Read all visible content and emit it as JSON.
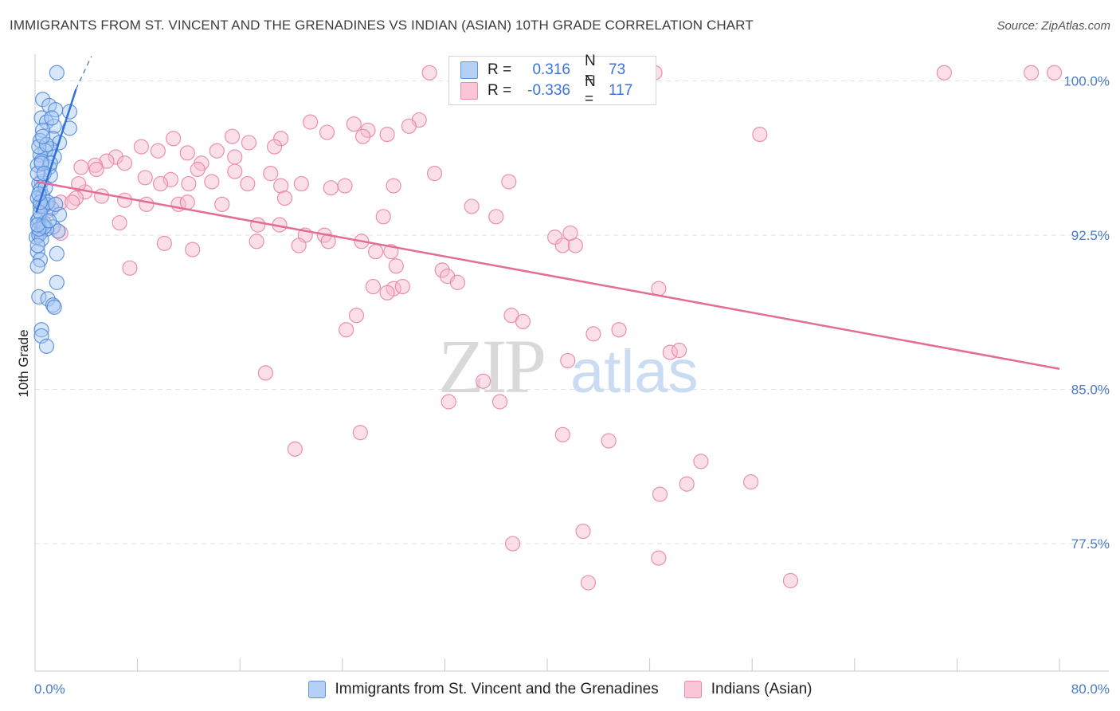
{
  "header": {
    "title": "IMMIGRANTS FROM ST. VINCENT AND THE GRENADINES VS INDIAN (ASIAN) 10TH GRADE CORRELATION CHART",
    "source": "Source: ZipAtlas.com"
  },
  "watermark": {
    "zip": "ZIP",
    "atlas": "atlas"
  },
  "legend": {
    "r_label": "R =",
    "n_label": "N =",
    "rows": [
      {
        "r": "0.316",
        "n": "73"
      },
      {
        "r": "-0.336",
        "n": "117"
      }
    ]
  },
  "colors": {
    "blue_fill": "#a8c8f5",
    "blue_stroke": "#4a86d8",
    "blue_line": "#2f6fd6",
    "pink_fill": "#f7b8cd",
    "pink_stroke": "#e87ea3",
    "pink_line": "#e36d97",
    "tick_text": "#4a7ac8",
    "grid": "#e2e2e2"
  },
  "chart_data": {
    "type": "scatter",
    "title": "IMMIGRANTS FROM ST. VINCENT AND THE GRENADINES VS INDIAN (ASIAN) 10TH GRADE CORRELATION CHART",
    "ylabel": "10th Grade",
    "xlabel": "",
    "xlim": [
      0,
      80
    ],
    "ylim": [
      71.3,
      101.3
    ],
    "x_tick_labels": [
      "0.0%",
      "80.0%"
    ],
    "y_ticks": [
      77.5,
      85.0,
      92.5,
      100.0
    ],
    "y_tick_labels": [
      "77.5%",
      "85.0%",
      "92.5%",
      "100.0%"
    ],
    "grid": true,
    "series": [
      {
        "name": "Immigrants from St. Vincent and the Grenadines",
        "color": "#a8c8f5",
        "trend": {
          "x": [
            0.1,
            3.2
          ],
          "y": [
            93.6,
            99.6
          ],
          "dash_to": [
            4.4,
            101.2
          ]
        },
        "points": [
          [
            1.7,
            100.4
          ],
          [
            0.6,
            99.1
          ],
          [
            1.1,
            98.8
          ],
          [
            1.6,
            98.6
          ],
          [
            2.7,
            98.5
          ],
          [
            0.5,
            98.2
          ],
          [
            0.9,
            98.0
          ],
          [
            1.5,
            97.8
          ],
          [
            0.6,
            97.6
          ],
          [
            2.7,
            97.7
          ],
          [
            0.4,
            97.1
          ],
          [
            1.4,
            97.2
          ],
          [
            1.9,
            97.0
          ],
          [
            1.2,
            96.7
          ],
          [
            0.8,
            96.6
          ],
          [
            0.4,
            96.4
          ],
          [
            1.5,
            96.3
          ],
          [
            0.5,
            96.1
          ],
          [
            0.2,
            95.9
          ],
          [
            1.1,
            95.8
          ],
          [
            1.2,
            95.4
          ],
          [
            0.5,
            95.1
          ],
          [
            0.3,
            95.0
          ],
          [
            0.4,
            94.7
          ],
          [
            0.6,
            94.4
          ],
          [
            0.2,
            94.3
          ],
          [
            0.9,
            94.0
          ],
          [
            0.4,
            93.9
          ],
          [
            1.3,
            93.8
          ],
          [
            1.9,
            93.5
          ],
          [
            0.2,
            93.2
          ],
          [
            0.3,
            93.3
          ],
          [
            0.7,
            93.1
          ],
          [
            1.4,
            92.9
          ],
          [
            1.8,
            92.7
          ],
          [
            0.6,
            93.0
          ],
          [
            0.4,
            92.6
          ],
          [
            0.1,
            92.4
          ],
          [
            0.9,
            92.8
          ],
          [
            0.3,
            92.5
          ],
          [
            0.5,
            92.3
          ],
          [
            0.2,
            91.7
          ],
          [
            1.7,
            91.6
          ],
          [
            0.4,
            91.3
          ],
          [
            0.2,
            91.0
          ],
          [
            1.7,
            90.2
          ],
          [
            0.3,
            89.5
          ],
          [
            1.0,
            89.4
          ],
          [
            1.4,
            89.1
          ],
          [
            1.5,
            89.0
          ],
          [
            0.5,
            87.9
          ],
          [
            0.5,
            87.6
          ],
          [
            0.9,
            87.1
          ],
          [
            0.3,
            96.8
          ],
          [
            0.6,
            93.9
          ],
          [
            1.0,
            94.1
          ],
          [
            0.2,
            95.5
          ],
          [
            0.7,
            92.9
          ],
          [
            1.2,
            96.0
          ],
          [
            0.4,
            93.6
          ],
          [
            0.8,
            94.8
          ],
          [
            0.3,
            92.8
          ],
          [
            1.6,
            94.0
          ],
          [
            0.5,
            96.0
          ],
          [
            0.2,
            93.0
          ],
          [
            1.1,
            93.2
          ],
          [
            0.7,
            95.5
          ],
          [
            0.4,
            94.1
          ],
          [
            0.9,
            96.9
          ],
          [
            0.3,
            94.5
          ],
          [
            1.3,
            98.2
          ],
          [
            0.6,
            97.3
          ],
          [
            0.2,
            92.0
          ]
        ]
      },
      {
        "name": "Indians (Asian)",
        "color": "#f7b8cd",
        "trend": {
          "x": [
            0.1,
            80
          ],
          "y": [
            95.1,
            86.0
          ]
        },
        "points": [
          [
            30.8,
            100.4
          ],
          [
            48.4,
            100.4
          ],
          [
            71.0,
            100.4
          ],
          [
            77.8,
            100.4
          ],
          [
            79.6,
            100.4
          ],
          [
            21.5,
            98.0
          ],
          [
            24.9,
            97.9
          ],
          [
            30.0,
            98.1
          ],
          [
            29.2,
            97.8
          ],
          [
            26.0,
            97.6
          ],
          [
            22.8,
            97.5
          ],
          [
            27.5,
            97.4
          ],
          [
            25.6,
            97.3
          ],
          [
            19.2,
            97.2
          ],
          [
            10.8,
            97.2
          ],
          [
            15.4,
            97.3
          ],
          [
            16.7,
            97.0
          ],
          [
            18.7,
            96.8
          ],
          [
            9.6,
            96.6
          ],
          [
            8.3,
            96.8
          ],
          [
            14.2,
            96.6
          ],
          [
            11.9,
            96.5
          ],
          [
            15.6,
            96.3
          ],
          [
            6.3,
            96.3
          ],
          [
            5.6,
            96.1
          ],
          [
            13.0,
            96.0
          ],
          [
            7.0,
            96.0
          ],
          [
            3.6,
            95.8
          ],
          [
            4.7,
            95.9
          ],
          [
            12.7,
            95.7
          ],
          [
            15.6,
            95.6
          ],
          [
            18.4,
            95.5
          ],
          [
            8.6,
            95.3
          ],
          [
            10.6,
            95.2
          ],
          [
            4.8,
            95.7
          ],
          [
            9.8,
            95.0
          ],
          [
            12.0,
            95.0
          ],
          [
            16.6,
            95.0
          ],
          [
            13.8,
            95.1
          ],
          [
            19.2,
            94.9
          ],
          [
            24.2,
            94.9
          ],
          [
            28.0,
            94.9
          ],
          [
            31.2,
            95.5
          ],
          [
            20.8,
            95.0
          ],
          [
            23.1,
            94.8
          ],
          [
            3.9,
            94.6
          ],
          [
            5.2,
            94.4
          ],
          [
            7.0,
            94.2
          ],
          [
            8.7,
            94.0
          ],
          [
            11.2,
            94.0
          ],
          [
            11.9,
            94.1
          ],
          [
            14.6,
            94.0
          ],
          [
            3.2,
            94.3
          ],
          [
            2.0,
            94.1
          ],
          [
            2.9,
            94.1
          ],
          [
            19.5,
            94.3
          ],
          [
            27.2,
            93.4
          ],
          [
            34.1,
            93.9
          ],
          [
            36.0,
            93.4
          ],
          [
            37.0,
            95.1
          ],
          [
            3.4,
            95.0
          ],
          [
            1.0,
            93.7
          ],
          [
            6.6,
            93.1
          ],
          [
            17.4,
            93.0
          ],
          [
            19.1,
            93.0
          ],
          [
            21.1,
            92.5
          ],
          [
            22.6,
            92.5
          ],
          [
            22.9,
            92.2
          ],
          [
            25.5,
            92.2
          ],
          [
            17.3,
            92.2
          ],
          [
            20.6,
            92.0
          ],
          [
            10.1,
            92.1
          ],
          [
            12.3,
            91.8
          ],
          [
            2.0,
            92.6
          ],
          [
            26.6,
            91.7
          ],
          [
            27.8,
            91.7
          ],
          [
            28.2,
            91.0
          ],
          [
            31.8,
            90.8
          ],
          [
            32.2,
            90.5
          ],
          [
            33.0,
            90.2
          ],
          [
            40.6,
            92.4
          ],
          [
            41.2,
            92.0
          ],
          [
            42.2,
            92.0
          ],
          [
            41.8,
            92.6
          ],
          [
            48.7,
            89.9
          ],
          [
            26.4,
            90.0
          ],
          [
            28.0,
            89.9
          ],
          [
            28.7,
            90.0
          ],
          [
            27.5,
            89.7
          ],
          [
            7.4,
            90.9
          ],
          [
            25.1,
            88.6
          ],
          [
            24.3,
            87.9
          ],
          [
            37.2,
            88.6
          ],
          [
            38.1,
            88.3
          ],
          [
            43.6,
            87.7
          ],
          [
            45.6,
            87.9
          ],
          [
            49.6,
            86.8
          ],
          [
            50.3,
            86.9
          ],
          [
            18.0,
            85.8
          ],
          [
            41.6,
            86.4
          ],
          [
            32.3,
            84.4
          ],
          [
            36.3,
            84.4
          ],
          [
            35.0,
            85.4
          ],
          [
            25.4,
            82.9
          ],
          [
            41.2,
            82.8
          ],
          [
            44.8,
            82.5
          ],
          [
            20.3,
            82.1
          ],
          [
            48.8,
            79.9
          ],
          [
            50.9,
            80.4
          ],
          [
            55.9,
            80.5
          ],
          [
            42.8,
            78.1
          ],
          [
            37.3,
            77.5
          ],
          [
            48.7,
            76.8
          ],
          [
            43.2,
            75.6
          ],
          [
            52.0,
            81.5
          ],
          [
            59.0,
            75.7
          ],
          [
            56.6,
            97.4
          ]
        ]
      }
    ]
  },
  "bottom_legend": [
    {
      "label": "Immigrants from St. Vincent and the Grenadines"
    },
    {
      "label": "Indians (Asian)"
    }
  ]
}
